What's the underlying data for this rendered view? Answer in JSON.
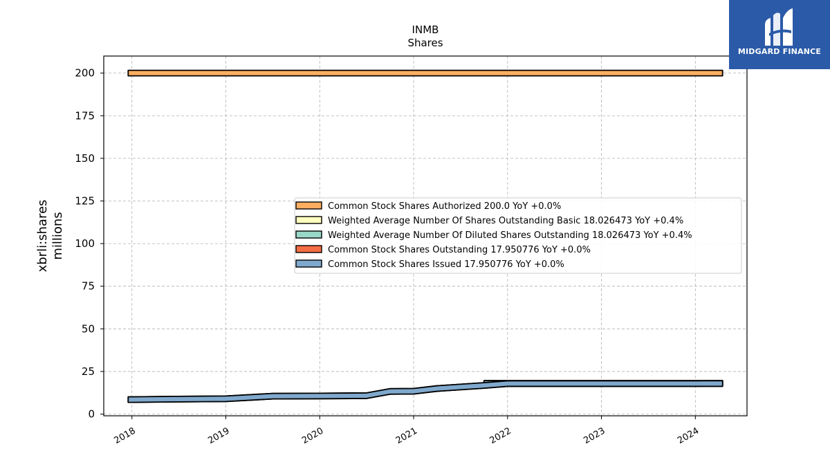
{
  "chart_data": {
    "type": "area",
    "title": "INMB",
    "subtitle": "Shares",
    "ylabel": "xbrli:shares",
    "ylabel2": "millions",
    "xlabel": "",
    "ylim": [
      -1,
      210
    ],
    "xlim": [
      2017.7,
      2024.55
    ],
    "grid": true,
    "legend_position": "center-right",
    "y_ticks": [
      0,
      25,
      50,
      75,
      100,
      125,
      150,
      175,
      200
    ],
    "x_ticks": [
      2018,
      2019,
      2020,
      2021,
      2022,
      2023,
      2024
    ],
    "x_tick_labels": [
      "2018",
      "2019",
      "2020",
      "2021",
      "2022",
      "2023",
      "2024"
    ],
    "series": [
      {
        "name": "Common Stock Shares Authorized",
        "legend_label": "Common Stock Shares Authorized  200.0 YoY +0.0%",
        "color": "#fdae61",
        "x": [
          2017.96,
          2024.29
        ],
        "values": [
          200.0,
          200.0
        ]
      },
      {
        "name": "Weighted Average Number Of Shares Outstanding Basic",
        "legend_label": "Weighted Average Number Of Shares Outstanding Basic  18.026473 YoY +0.4%",
        "color": "#ffffbf",
        "x": [
          2021.75,
          2022.0,
          2022.5,
          2023.0,
          2023.5,
          2024.0,
          2024.29
        ],
        "values": [
          18.0,
          18.0,
          18.0,
          18.0,
          18.0,
          18.0,
          18.0
        ]
      },
      {
        "name": "Weighted Average Number Of Diluted Shares Outstanding",
        "legend_label": "Weighted Average Number Of Diluted Shares Outstanding  18.026473 YoY +0.4%",
        "color": "#99d8c9",
        "x": [
          2021.75,
          2022.0,
          2022.5,
          2023.0,
          2023.5,
          2024.0,
          2024.29
        ],
        "values": [
          18.0,
          18.0,
          18.0,
          18.0,
          18.0,
          18.0,
          18.0
        ]
      },
      {
        "name": "Common Stock Shares Outstanding",
        "legend_label": "Common Stock Shares Outstanding  17.950776 YoY +0.0%",
        "color": "#f46d43",
        "x": [
          2017.96,
          2018.5,
          2019.0,
          2019.5,
          2020.0,
          2020.5,
          2020.75,
          2021.0,
          2021.25,
          2021.75,
          2022.0,
          2022.5,
          2023.0,
          2023.5,
          2024.0,
          2024.29
        ],
        "values": [
          8.5,
          8.8,
          9.0,
          10.5,
          10.6,
          10.8,
          13.3,
          13.4,
          15.0,
          16.8,
          17.9,
          17.9,
          17.9,
          17.9,
          17.9,
          17.95
        ]
      },
      {
        "name": "Common Stock Shares Issued",
        "legend_label": "Common Stock Shares Issued  17.950776 YoY +0.0%",
        "color": "#7fa8cc",
        "x": [
          2017.96,
          2018.5,
          2019.0,
          2019.5,
          2020.0,
          2020.5,
          2020.75,
          2021.0,
          2021.25,
          2021.75,
          2022.0,
          2022.5,
          2023.0,
          2023.5,
          2024.0,
          2024.29
        ],
        "values": [
          8.5,
          8.8,
          9.0,
          10.5,
          10.6,
          10.8,
          13.3,
          13.4,
          15.0,
          16.8,
          17.9,
          17.9,
          17.9,
          17.9,
          17.9,
          17.95
        ]
      }
    ]
  },
  "logo": {
    "text": "MIDGARD FINANCE",
    "icon": "midgard-logo-icon",
    "background": "#2b5aa8"
  }
}
